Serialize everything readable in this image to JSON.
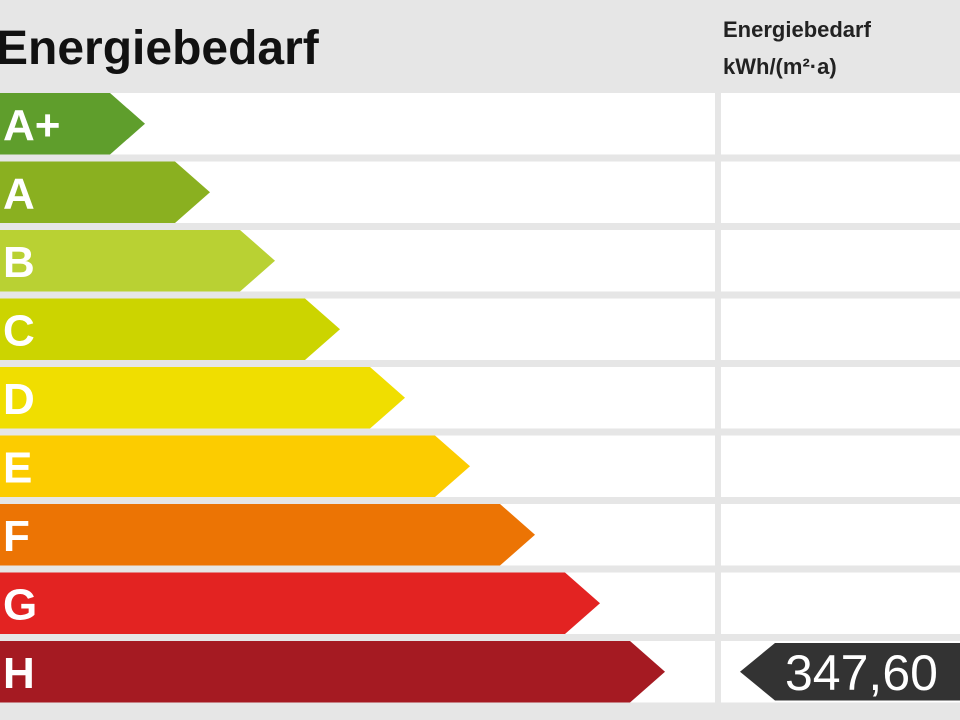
{
  "header": {
    "title": "Energiebedarf",
    "column_title": [
      "Energiebedarf",
      "kWh/(m²·a)"
    ]
  },
  "classes": [
    {
      "label": "A+",
      "color": "#5f9e2c"
    },
    {
      "label": "A",
      "color": "#8ab020"
    },
    {
      "label": "B",
      "color": "#b9d133"
    },
    {
      "label": "C",
      "color": "#ccd400"
    },
    {
      "label": "D",
      "color": "#f0de00"
    },
    {
      "label": "E",
      "color": "#fccc00"
    },
    {
      "label": "F",
      "color": "#ec7404"
    },
    {
      "label": "G",
      "color": "#e32322"
    },
    {
      "label": "H",
      "color": "#a51a22",
      "value": "347,60"
    }
  ]
}
